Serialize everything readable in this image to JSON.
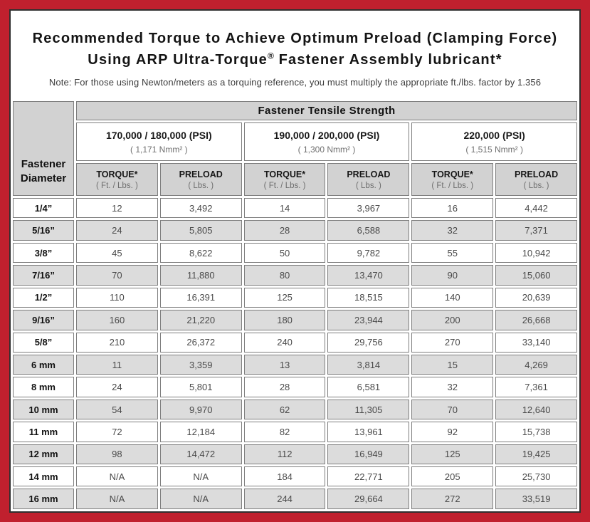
{
  "colors": {
    "border_red": "#c0202e",
    "header_gray": "#d2d2d2",
    "row_alt_gray": "#dcdcdc",
    "cell_border": "#7e7e7e",
    "frame_dark": "#2f2f2f"
  },
  "header": {
    "title_line1": "Recommended Torque to Achieve Optimum Preload (Clamping Force)",
    "title_line2_pre": "Using ARP Ultra-Torque",
    "registered_mark": "®",
    "title_line2_post": " Fastener Assembly lubricant*",
    "note": "Note: For those using Newton/meters as a torquing reference, you must multiply the appropriate ft./lbs. factor by 1.356"
  },
  "chart_data": {
    "type": "table",
    "title": "Recommended Torque to Achieve Optimum Preload (Clamping Force) Using ARP Ultra-Torque® Fastener Assembly lubricant*",
    "corner_label_line1": "Fastener",
    "corner_label_line2": "Diameter",
    "span_header": "Fastener Tensile Strength",
    "groups": [
      {
        "psi": "170,000 / 180,000 (PSI)",
        "nmm": "( 1,171 Nmm² )"
      },
      {
        "psi": "190,000 / 200,000 (PSI)",
        "nmm": "( 1,300 Nmm² )"
      },
      {
        "psi": "220,000 (PSI)",
        "nmm": "( 1,515 Nmm² )"
      }
    ],
    "sub_headers": {
      "torque": "TORQUE*",
      "torque_unit": "( Ft. / Lbs. )",
      "preload": "PRELOAD",
      "preload_unit": "( Lbs. )"
    },
    "rows": [
      {
        "diameter": "1/4”",
        "values": [
          "12",
          "3,492",
          "14",
          "3,967",
          "16",
          "4,442"
        ]
      },
      {
        "diameter": "5/16”",
        "values": [
          "24",
          "5,805",
          "28",
          "6,588",
          "32",
          "7,371"
        ]
      },
      {
        "diameter": "3/8”",
        "values": [
          "45",
          "8,622",
          "50",
          "9,782",
          "55",
          "10,942"
        ]
      },
      {
        "diameter": "7/16”",
        "values": [
          "70",
          "11,880",
          "80",
          "13,470",
          "90",
          "15,060"
        ]
      },
      {
        "diameter": "1/2”",
        "values": [
          "110",
          "16,391",
          "125",
          "18,515",
          "140",
          "20,639"
        ]
      },
      {
        "diameter": "9/16”",
        "values": [
          "160",
          "21,220",
          "180",
          "23,944",
          "200",
          "26,668"
        ]
      },
      {
        "diameter": "5/8”",
        "values": [
          "210",
          "26,372",
          "240",
          "29,756",
          "270",
          "33,140"
        ]
      },
      {
        "diameter": "6 mm",
        "values": [
          "11",
          "3,359",
          "13",
          "3,814",
          "15",
          "4,269"
        ]
      },
      {
        "diameter": "8 mm",
        "values": [
          "24",
          "5,801",
          "28",
          "6,581",
          "32",
          "7,361"
        ]
      },
      {
        "diameter": "10 mm",
        "values": [
          "54",
          "9,970",
          "62",
          "11,305",
          "70",
          "12,640"
        ]
      },
      {
        "diameter": "11 mm",
        "values": [
          "72",
          "12,184",
          "82",
          "13,961",
          "92",
          "15,738"
        ]
      },
      {
        "diameter": "12 mm",
        "values": [
          "98",
          "14,472",
          "112",
          "16,949",
          "125",
          "19,425"
        ]
      },
      {
        "diameter": "14 mm",
        "values": [
          "N/A",
          "N/A",
          "184",
          "22,771",
          "205",
          "25,730"
        ]
      },
      {
        "diameter": "16 mm",
        "values": [
          "N/A",
          "N/A",
          "244",
          "29,664",
          "272",
          "33,519"
        ]
      }
    ]
  }
}
